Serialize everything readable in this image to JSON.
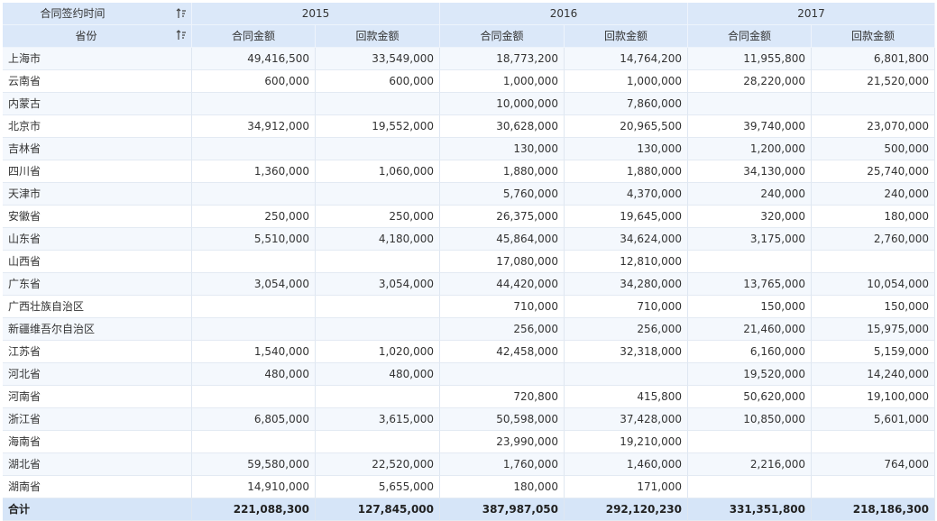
{
  "header": {
    "corner_top": "合同签约时间",
    "corner_bottom": "省份",
    "years": [
      "2015",
      "2016",
      "2017"
    ],
    "measures": [
      "合同金额",
      "回款金额",
      "合同金额",
      "回款金额",
      "合同金额",
      "回款金额"
    ]
  },
  "table": {
    "rows": [
      [
        "上海市",
        "49,416,500",
        "33,549,000",
        "18,773,200",
        "14,764,200",
        "11,955,800",
        "6,801,800"
      ],
      [
        "云南省",
        "600,000",
        "600,000",
        "1,000,000",
        "1,000,000",
        "28,220,000",
        "21,520,000"
      ],
      [
        "内蒙古",
        null,
        null,
        "10,000,000",
        "7,860,000",
        null,
        null
      ],
      [
        "北京市",
        "34,912,000",
        "19,552,000",
        "30,628,000",
        "20,965,500",
        "39,740,000",
        "23,070,000"
      ],
      [
        "吉林省",
        null,
        null,
        "130,000",
        "130,000",
        "1,200,000",
        "500,000"
      ],
      [
        "四川省",
        "1,360,000",
        "1,060,000",
        "1,880,000",
        "1,880,000",
        "34,130,000",
        "25,740,000"
      ],
      [
        "天津市",
        null,
        null,
        "5,760,000",
        "4,370,000",
        "240,000",
        "240,000"
      ],
      [
        "安徽省",
        "250,000",
        "250,000",
        "26,375,000",
        "19,645,000",
        "320,000",
        "180,000"
      ],
      [
        "山东省",
        "5,510,000",
        "4,180,000",
        "45,864,000",
        "34,624,000",
        "3,175,000",
        "2,760,000"
      ],
      [
        "山西省",
        null,
        null,
        "17,080,000",
        "12,810,000",
        null,
        null
      ],
      [
        "广东省",
        "3,054,000",
        "3,054,000",
        "44,420,000",
        "34,280,000",
        "13,765,000",
        "10,054,000"
      ],
      [
        "广西壮族自治区",
        null,
        null,
        "710,000",
        "710,000",
        "150,000",
        "150,000"
      ],
      [
        "新疆维吾尔自治区",
        null,
        null,
        "256,000",
        "256,000",
        "21,460,000",
        "15,975,000"
      ],
      [
        "江苏省",
        "1,540,000",
        "1,020,000",
        "42,458,000",
        "32,318,000",
        "6,160,000",
        "5,159,000"
      ],
      [
        "河北省",
        "480,000",
        "480,000",
        null,
        null,
        "19,520,000",
        "14,240,000"
      ],
      [
        "河南省",
        null,
        null,
        "720,800",
        "415,800",
        "50,620,000",
        "19,100,000"
      ],
      [
        "浙江省",
        "6,805,000",
        "3,615,000",
        "50,598,000",
        "37,428,000",
        "10,850,000",
        "5,601,000"
      ],
      [
        "海南省",
        null,
        null,
        "23,990,000",
        "19,210,000",
        null,
        null
      ],
      [
        "湖北省",
        "59,580,000",
        "22,520,000",
        "1,760,000",
        "1,460,000",
        "2,216,000",
        "764,000"
      ],
      [
        "湖南省",
        "14,910,000",
        "5,655,000",
        "180,000",
        "171,000",
        null,
        null
      ]
    ],
    "total": [
      "合计",
      "221,088,300",
      "127,845,000",
      "387,987,050",
      "292,120,230",
      "331,351,800",
      "218,186,300"
    ]
  }
}
